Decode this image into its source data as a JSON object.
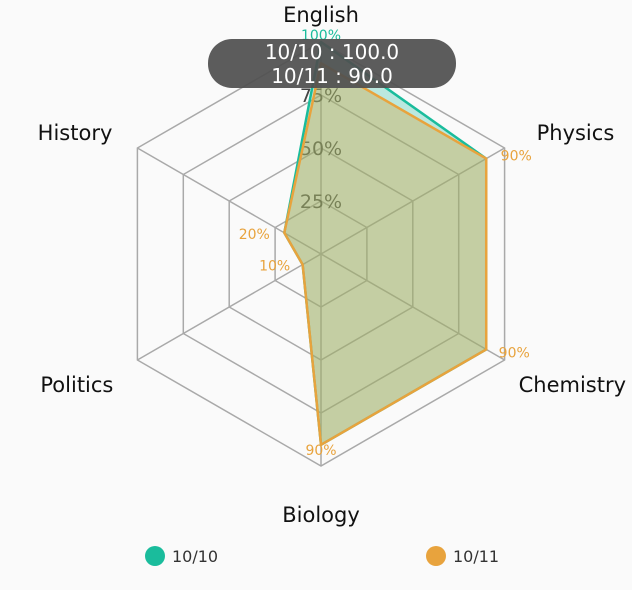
{
  "chart_data": {
    "type": "radar",
    "indicators": [
      "English",
      "Physics",
      "Chemistry",
      "Biology",
      "Politics",
      "History"
    ],
    "max": 100,
    "ticks": [
      25,
      50,
      75,
      100
    ],
    "tick_labels": [
      "25%",
      "50%",
      "75%",
      "100%"
    ],
    "series": [
      {
        "name": "10/10",
        "color": "#1abc9c",
        "values": [
          100,
          90,
          90,
          90,
          10,
          20
        ],
        "data_labels": [
          "100%",
          "",
          "",
          "",
          "",
          ""
        ]
      },
      {
        "name": "10/11",
        "color": "#e8a33d",
        "values": [
          90,
          90,
          90,
          90,
          10,
          20
        ],
        "data_labels": [
          "",
          "90%",
          "90%",
          "90%",
          "10%",
          "20%"
        ]
      }
    ],
    "legend": {
      "position": "bottom"
    },
    "tooltip": {
      "lines": [
        "10/10 : 100.0",
        "10/11 : 90.0"
      ]
    }
  }
}
